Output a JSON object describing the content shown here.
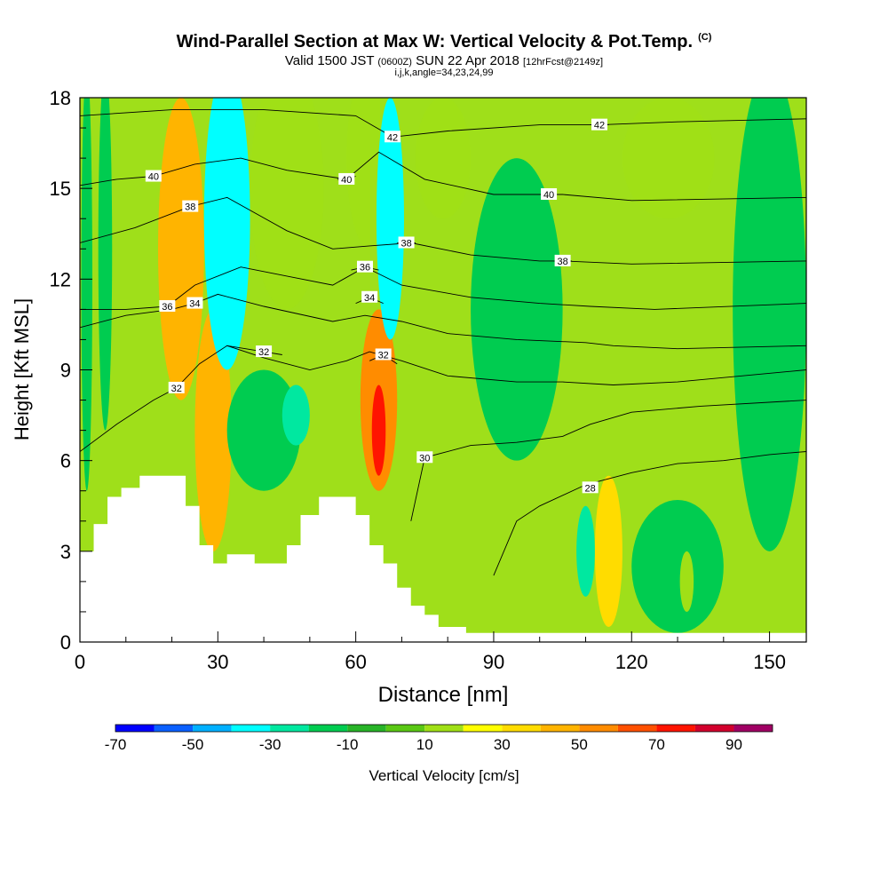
{
  "header": {
    "title": "Wind-Parallel Section at Max W: Vertical Velocity & Pot.Temp.",
    "copyright": "(C)",
    "valid_prefix": "Valid 1500 JST",
    "valid_utc": "(0600Z)",
    "valid_date": "SUN 22 Apr 2018",
    "forecast": "[12hrFcst@2149z]",
    "indices": "i,j,k,angle=34,23,24,99"
  },
  "colors": {
    "plot_bg": "#9fdf1a",
    "terrain": "#ffffff"
  },
  "chart_data": {
    "type": "heatmap",
    "xlabel": "Distance [nm]",
    "ylabel": "Height [Kft MSL]",
    "xlim": [
      0,
      158
    ],
    "ylim": [
      0,
      18
    ],
    "x_ticks": [
      "0",
      "30",
      "60",
      "90",
      "120",
      "150"
    ],
    "x_tick_values": [
      0,
      30,
      60,
      90,
      120,
      150
    ],
    "y_ticks": [
      "0",
      "3",
      "6",
      "9",
      "12",
      "15",
      "18"
    ],
    "y_tick_values": [
      0,
      3,
      6,
      9,
      12,
      15,
      18
    ],
    "terrain_profile": [
      [
        0,
        3
      ],
      [
        3,
        3.9
      ],
      [
        6,
        4.8
      ],
      [
        9,
        5.1
      ],
      [
        13,
        5.5
      ],
      [
        23,
        4.5
      ],
      [
        26,
        3.2
      ],
      [
        29,
        2.6
      ],
      [
        32,
        2.9
      ],
      [
        38,
        2.6
      ],
      [
        45,
        3.2
      ],
      [
        48,
        4.2
      ],
      [
        52,
        4.8
      ],
      [
        60,
        4.2
      ],
      [
        63,
        3.2
      ],
      [
        66,
        2.6
      ],
      [
        69,
        1.8
      ],
      [
        72,
        1.2
      ],
      [
        75,
        0.9
      ],
      [
        78,
        0.5
      ],
      [
        84,
        0.3
      ],
      [
        158,
        0.3
      ]
    ],
    "vv_field": [
      {
        "x": 1.5,
        "y": 12,
        "rx": 1.2,
        "ry": 7,
        "value": -15
      },
      {
        "x": 5.5,
        "y": 13,
        "rx": 1.5,
        "ry": 6,
        "value": -20
      },
      {
        "x": 22,
        "y": 13,
        "rx": 5,
        "ry": 5,
        "value": 40
      },
      {
        "x": 29,
        "y": 7,
        "rx": 4,
        "ry": 4,
        "value": 40
      },
      {
        "x": 32,
        "y": 14,
        "rx": 5,
        "ry": 5,
        "value": -40
      },
      {
        "x": 45,
        "y": 15,
        "rx": 8,
        "ry": 4,
        "value": 15
      },
      {
        "x": 40,
        "y": 7,
        "rx": 8,
        "ry": 2,
        "value": -15
      },
      {
        "x": 47,
        "y": 7.5,
        "rx": 3,
        "ry": 1,
        "value": -25
      },
      {
        "x": 63,
        "y": 16,
        "rx": 5,
        "ry": 3,
        "value": 15
      },
      {
        "x": 65,
        "y": 8,
        "rx": 4,
        "ry": 3,
        "value": 50
      },
      {
        "x": 65,
        "y": 7,
        "rx": 1.5,
        "ry": 1.5,
        "value": 70
      },
      {
        "x": 67.5,
        "y": 14,
        "rx": 3,
        "ry": 4,
        "value": -40
      },
      {
        "x": 79,
        "y": 16,
        "rx": 6,
        "ry": 2,
        "value": 15
      },
      {
        "x": 95,
        "y": 11,
        "rx": 10,
        "ry": 5,
        "value": -12
      },
      {
        "x": 115,
        "y": 3,
        "rx": 3,
        "ry": 2.5,
        "value": 30
      },
      {
        "x": 110,
        "y": 3,
        "rx": 2,
        "ry": 1.5,
        "value": -25
      },
      {
        "x": 128,
        "y": 16,
        "rx": 10,
        "ry": 2,
        "value": 10
      },
      {
        "x": 150,
        "y": 11,
        "rx": 8,
        "ry": 8,
        "value": -12
      },
      {
        "x": 130,
        "y": 2.5,
        "rx": 10,
        "ry": 2.2,
        "value": -12
      },
      {
        "x": 132,
        "y": 2,
        "rx": 1.5,
        "ry": 1,
        "value": 15
      }
    ],
    "vv_colorbar": {
      "label": "Vertical Velocity [cm/s]",
      "tick_labels": [
        "-70",
        "-50",
        "-30",
        "-10",
        "10",
        "30",
        "50",
        "70",
        "90"
      ],
      "tick_values": [
        -70,
        -50,
        -30,
        -10,
        10,
        30,
        50,
        70,
        90
      ],
      "bin_edges": [
        -70,
        -60,
        -50,
        -40,
        -30,
        -20,
        -10,
        0,
        10,
        20,
        30,
        40,
        50,
        60,
        70,
        80,
        90,
        100
      ],
      "colors": [
        "#0000ff",
        "#0a60ff",
        "#00b0ff",
        "#00ffff",
        "#00e8a0",
        "#00cc50",
        "#28b428",
        "#5ac814",
        "#a0e016",
        "#ffff00",
        "#ffdc00",
        "#ffb400",
        "#ff8c00",
        "#ff5000",
        "#ff1400",
        "#d2002d",
        "#a00064",
        "#780096"
      ]
    },
    "theta_contours": [
      {
        "level": 28,
        "label": "28",
        "label_x": 111,
        "label_y": 5.1,
        "points": [
          [
            90,
            2.2
          ],
          [
            95,
            4.0
          ],
          [
            100,
            4.5
          ],
          [
            110,
            5.2
          ],
          [
            120,
            5.6
          ],
          [
            130,
            5.9
          ],
          [
            140,
            6.0
          ],
          [
            150,
            6.2
          ],
          [
            158,
            6.3
          ]
        ]
      },
      {
        "level": 30,
        "label": "30",
        "label_x": 75,
        "label_y": 6.1,
        "points": [
          [
            72,
            4.0
          ],
          [
            75,
            6.1
          ],
          [
            85,
            6.5
          ],
          [
            95,
            6.6
          ],
          [
            105,
            6.8
          ],
          [
            111,
            7.2
          ],
          [
            120,
            7.6
          ],
          [
            135,
            7.8
          ],
          [
            158,
            8.0
          ]
        ]
      },
      {
        "level": 32,
        "label": "32",
        "label_x": 21,
        "label_y": 8.4,
        "points": [
          [
            0,
            6.3
          ],
          [
            8,
            7.2
          ],
          [
            16,
            8.0
          ],
          [
            21,
            8.4
          ],
          [
            26,
            9.2
          ],
          [
            32,
            9.8
          ],
          [
            40,
            9.4
          ],
          [
            50,
            9.0
          ],
          [
            58,
            9.3
          ],
          [
            63,
            9.6
          ],
          [
            70,
            9.3
          ],
          [
            80,
            8.8
          ],
          [
            95,
            8.6
          ],
          [
            105,
            8.6
          ],
          [
            116,
            8.5
          ],
          [
            130,
            8.6
          ],
          [
            158,
            9.0
          ]
        ]
      },
      {
        "level": 32,
        "label": "32",
        "label_x": 40,
        "label_y": 9.6,
        "points": [
          [
            32,
            9.8
          ],
          [
            36,
            9.7
          ],
          [
            40,
            9.6
          ],
          [
            44,
            9.5
          ]
        ]
      },
      {
        "level": 32,
        "label": "32",
        "label_x": 66,
        "label_y": 9.5,
        "points": [
          [
            63,
            9.3
          ],
          [
            66,
            9.5
          ],
          [
            69,
            9.2
          ]
        ]
      },
      {
        "level": 34,
        "label": "34",
        "label_x": 25,
        "label_y": 11.2,
        "points": [
          [
            0,
            10.4
          ],
          [
            10,
            10.8
          ],
          [
            20,
            11.0
          ],
          [
            25,
            11.2
          ],
          [
            30,
            11.5
          ],
          [
            40,
            11.1
          ],
          [
            55,
            10.6
          ],
          [
            62,
            10.8
          ],
          [
            70,
            10.6
          ],
          [
            80,
            10.2
          ],
          [
            95,
            10.0
          ],
          [
            110,
            9.9
          ],
          [
            116,
            9.8
          ],
          [
            130,
            9.7
          ],
          [
            158,
            9.8
          ]
        ]
      },
      {
        "level": 34,
        "label": "34",
        "label_x": 63,
        "label_y": 11.4,
        "points": [
          [
            60,
            11.2
          ],
          [
            63,
            11.4
          ],
          [
            66,
            11.2
          ]
        ]
      },
      {
        "level": 36,
        "label": "36",
        "label_x": 19,
        "label_y": 11.1,
        "points": [
          [
            0,
            11.0
          ],
          [
            10,
            11.0
          ],
          [
            19,
            11.1
          ],
          [
            25,
            11.8
          ],
          [
            35,
            12.4
          ],
          [
            45,
            12.1
          ],
          [
            55,
            11.8
          ],
          [
            62,
            12.4
          ],
          [
            70,
            11.8
          ],
          [
            85,
            11.4
          ],
          [
            100,
            11.2
          ],
          [
            111,
            11.1
          ],
          [
            125,
            11.0
          ],
          [
            158,
            11.2
          ]
        ]
      },
      {
        "level": 36,
        "label": "36",
        "label_x": 62,
        "label_y": 12.4,
        "points": [
          [
            59,
            12.3
          ],
          [
            62,
            12.4
          ],
          [
            65,
            12.3
          ]
        ]
      },
      {
        "level": 38,
        "label": "38",
        "label_x": 24,
        "label_y": 14.4,
        "points": [
          [
            0,
            13.2
          ],
          [
            12,
            13.7
          ],
          [
            24,
            14.4
          ],
          [
            32,
            14.7
          ],
          [
            45,
            13.6
          ],
          [
            55,
            13.0
          ],
          [
            63,
            13.1
          ],
          [
            72,
            13.2
          ],
          [
            85,
            12.8
          ],
          [
            100,
            12.6
          ],
          [
            105,
            12.6
          ],
          [
            120,
            12.5
          ],
          [
            158,
            12.6
          ]
        ]
      },
      {
        "level": 38,
        "label": "38",
        "label_x": 71,
        "label_y": 13.2,
        "points": [
          [
            69,
            13.2
          ],
          [
            71,
            13.2
          ],
          [
            73,
            13.2
          ]
        ]
      },
      {
        "level": 38,
        "label": "38",
        "label_x": 105,
        "label_y": 12.6,
        "points": [
          [
            103,
            12.6
          ],
          [
            105,
            12.6
          ],
          [
            107,
            12.6
          ]
        ]
      },
      {
        "level": 40,
        "label": "40",
        "label_x": 16,
        "label_y": 15.4,
        "points": [
          [
            0,
            15.1
          ],
          [
            8,
            15.3
          ],
          [
            16,
            15.4
          ],
          [
            25,
            15.8
          ],
          [
            35,
            16.0
          ],
          [
            45,
            15.6
          ],
          [
            58,
            15.3
          ],
          [
            65,
            16.2
          ],
          [
            75,
            15.3
          ],
          [
            90,
            14.8
          ],
          [
            100,
            14.8
          ],
          [
            105,
            14.8
          ],
          [
            120,
            14.6
          ],
          [
            158,
            14.7
          ]
        ]
      },
      {
        "level": 40,
        "label": "40",
        "label_x": 58,
        "label_y": 15.3,
        "points": [
          [
            56,
            15.3
          ],
          [
            58,
            15.3
          ],
          [
            60,
            15.4
          ]
        ]
      },
      {
        "level": 40,
        "label": "40",
        "label_x": 102,
        "label_y": 14.8,
        "points": [
          [
            100,
            14.8
          ],
          [
            102,
            14.8
          ],
          [
            104,
            14.8
          ]
        ]
      },
      {
        "level": 42,
        "label": "42",
        "label_x": 68,
        "label_y": 16.7,
        "points": [
          [
            0,
            17.4
          ],
          [
            20,
            17.6
          ],
          [
            40,
            17.6
          ],
          [
            60,
            17.4
          ],
          [
            68,
            16.7
          ],
          [
            80,
            16.9
          ],
          [
            100,
            17.1
          ],
          [
            113,
            17.1
          ],
          [
            130,
            17.2
          ],
          [
            158,
            17.3
          ]
        ]
      },
      {
        "level": 42,
        "label": "42",
        "label_x": 113,
        "label_y": 17.1,
        "points": [
          [
            111,
            17.1
          ],
          [
            113,
            17.1
          ],
          [
            115,
            17.1
          ]
        ]
      }
    ]
  }
}
